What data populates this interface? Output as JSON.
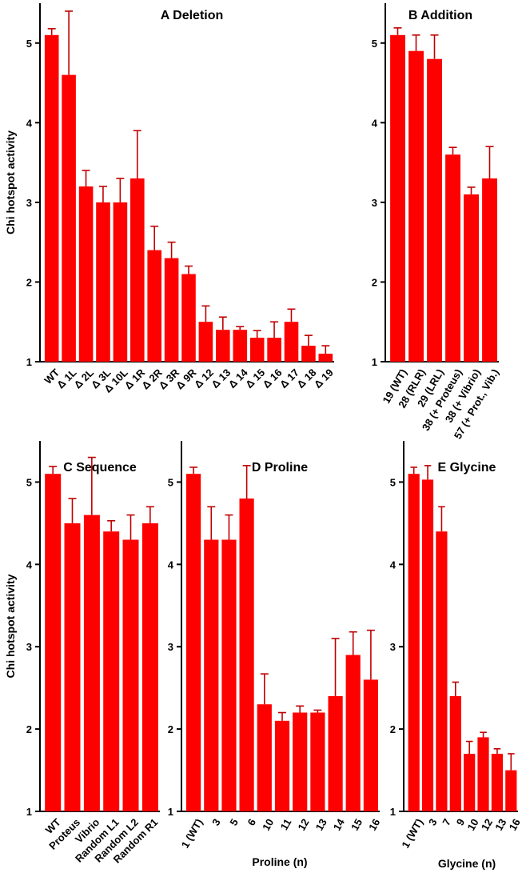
{
  "figure": {
    "ylabel": "Chi hotspot activity"
  },
  "chart_data": [
    {
      "id": "A",
      "type": "bar",
      "title": "A  Deletion",
      "xlabel": "",
      "ylabel": "Chi hotspot activity",
      "ylim": [
        1,
        5.5
      ],
      "yticks": [
        1,
        2,
        3,
        4,
        5
      ],
      "categories": [
        "WT",
        "Δ 1L",
        "Δ 2L",
        "Δ 3L",
        "Δ 10L",
        "Δ 1R",
        "Δ 2R",
        "Δ 3R",
        "Δ 9R",
        "Δ 12",
        "Δ 13",
        "Δ 14",
        "Δ 15",
        "Δ 16",
        "Δ 17",
        "Δ 18",
        "Δ 19"
      ],
      "values": [
        5.1,
        4.6,
        3.2,
        3.0,
        3.0,
        3.3,
        2.4,
        2.3,
        2.1,
        1.5,
        1.4,
        1.4,
        1.3,
        1.3,
        1.5,
        1.2,
        1.1
      ],
      "errors": [
        0.08,
        0.8,
        0.2,
        0.2,
        0.3,
        0.6,
        0.3,
        0.2,
        0.1,
        0.2,
        0.16,
        0.04,
        0.09,
        0.2,
        0.16,
        0.13,
        0.1
      ]
    },
    {
      "id": "B",
      "type": "bar",
      "title": "B  Addition",
      "xlabel": "",
      "ylabel": "",
      "ylim": [
        1,
        5.5
      ],
      "yticks": [
        1,
        2,
        3,
        4,
        5
      ],
      "categories": [
        "19 (WT)",
        "28 (RLR)",
        "29 (LRL)",
        "38 (+ Proteus)",
        "38 (+ Vibrio)",
        "57 (+ Prot., Vib.)"
      ],
      "values": [
        5.1,
        4.9,
        4.8,
        3.6,
        3.1,
        3.3
      ],
      "errors": [
        0.09,
        0.2,
        0.3,
        0.09,
        0.09,
        0.4
      ]
    },
    {
      "id": "C",
      "type": "bar",
      "title": "C  Sequence",
      "xlabel": "",
      "ylabel": "Chi hotspot activity",
      "ylim": [
        1,
        5.5
      ],
      "yticks": [
        1,
        2,
        3,
        4,
        5
      ],
      "categories": [
        "WT",
        "Proteus",
        "Vibrio",
        "Random L1",
        "Random L2",
        "Random R1"
      ],
      "values": [
        5.1,
        4.5,
        4.6,
        4.4,
        4.3,
        4.5
      ],
      "errors": [
        0.09,
        0.3,
        0.7,
        0.13,
        0.3,
        0.2
      ]
    },
    {
      "id": "D",
      "type": "bar",
      "title": "D  Proline",
      "xlabel": "Proline (n)",
      "ylabel": "",
      "ylim": [
        1,
        5.5
      ],
      "yticks": [
        1,
        2,
        3,
        4,
        5
      ],
      "categories": [
        "1 (WT)",
        "3",
        "5",
        "6",
        "10",
        "11",
        "12",
        "13",
        "14",
        "15",
        "16"
      ],
      "values": [
        5.1,
        4.3,
        4.3,
        4.8,
        2.3,
        2.1,
        2.2,
        2.2,
        2.4,
        2.9,
        2.6
      ],
      "errors": [
        0.08,
        0.4,
        0.3,
        0.4,
        0.37,
        0.1,
        0.08,
        0.03,
        0.7,
        0.28,
        0.6
      ]
    },
    {
      "id": "E",
      "type": "bar",
      "title": "E  Glycine",
      "xlabel": "Glycine (n)",
      "ylabel": "",
      "ylim": [
        1,
        5.5
      ],
      "yticks": [
        1,
        2,
        3,
        4,
        5
      ],
      "categories": [
        "1 (WT)",
        "3",
        "7",
        "9",
        "10",
        "12",
        "13",
        "16"
      ],
      "values": [
        5.1,
        5.03,
        4.4,
        2.4,
        1.7,
        1.9,
        1.7,
        1.5
      ],
      "errors": [
        0.08,
        0.17,
        0.3,
        0.17,
        0.15,
        0.06,
        0.06,
        0.2
      ]
    }
  ],
  "colors": {
    "bar": "#ff0000",
    "error_bar": "#c00000",
    "axis": "#000000"
  }
}
